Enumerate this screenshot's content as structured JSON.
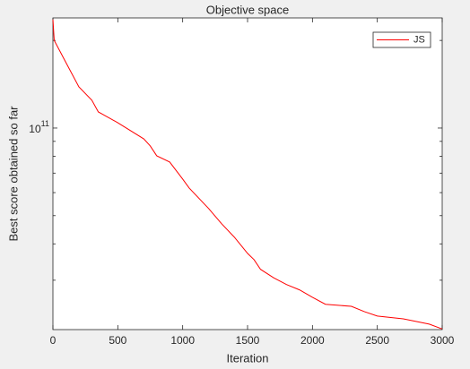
{
  "chart_data": {
    "type": "line",
    "title": "Objective space",
    "x_label": "Iteration",
    "y_label": "Best score obtained so far",
    "y_scale": "log",
    "xlim": [
      0,
      3000
    ],
    "xticks": [
      0,
      500,
      1000,
      1500,
      2000,
      2500,
      3000
    ],
    "ylim": [
      20300000000,
      239000000000
    ],
    "yticks": [
      {
        "value": 100000000000,
        "label": "10^11"
      }
    ],
    "yminorticks": [
      30000000000,
      40000000000,
      50000000000,
      60000000000,
      70000000000,
      80000000000,
      90000000000,
      200000000000
    ],
    "legend": "upper right",
    "x": [
      0,
      10,
      100,
      200,
      300,
      350,
      500,
      700,
      750,
      800,
      900,
      1000,
      1050,
      1200,
      1300,
      1400,
      1500,
      1550,
      1600,
      1700,
      1800,
      1900,
      2000,
      2100,
      2300,
      2400,
      2500,
      2700,
      2900,
      3000
    ],
    "series": [
      {
        "name": "JS",
        "color": "#ff0000",
        "values": [
          236000000000,
          200000000000,
          168000000000,
          138500000000,
          124600000000,
          113600000000,
          104300000000,
          91800000000,
          86800000000,
          80300000000,
          76400000000,
          66800000000,
          62200000000,
          52900000000,
          46900000000,
          42100000000,
          37100000000,
          35300000000,
          32700000000,
          30600000000,
          29000000000,
          27800000000,
          26200000000,
          24800000000,
          24400000000,
          23400000000,
          22600000000,
          22100000000,
          21200000000,
          20400000000
        ]
      }
    ]
  }
}
